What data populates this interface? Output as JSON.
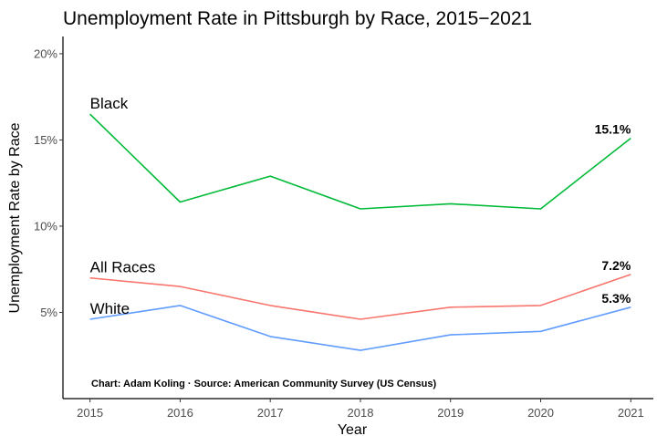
{
  "chart_data": {
    "type": "line",
    "title": "Unemployment Rate in Pittsburgh by Race, 2015−2021",
    "xlabel": "Year",
    "ylabel": "Unemployment Rate by Race",
    "x": [
      2015,
      2016,
      2017,
      2018,
      2019,
      2020,
      2021
    ],
    "x_tick_labels": [
      "2015",
      "2016",
      "2017",
      "2018",
      "2019",
      "2020",
      "2021"
    ],
    "y_ticks": [
      5,
      10,
      15,
      20
    ],
    "y_tick_labels": [
      "5%",
      "10%",
      "15%",
      "20%"
    ],
    "xlim": [
      2014.7,
      2021.25
    ],
    "ylim": [
      0,
      21
    ],
    "grid": false,
    "legend": "none",
    "series": [
      {
        "name": "Black",
        "color": "#00ba38",
        "values": [
          16.5,
          11.4,
          12.9,
          11.0,
          11.3,
          11.0,
          15.1
        ],
        "end_label": "15.1%"
      },
      {
        "name": "All Races",
        "color": "#f8766d",
        "values": [
          7.0,
          6.5,
          5.4,
          4.6,
          5.3,
          5.4,
          7.2
        ],
        "end_label": "7.2%"
      },
      {
        "name": "White",
        "color": "#619cff",
        "values": [
          4.6,
          5.4,
          3.6,
          2.8,
          3.7,
          3.9,
          5.3
        ],
        "end_label": "5.3%"
      }
    ],
    "caption": "Chart: Adam Koling  ·  Source: American Community Survey (US Census)"
  }
}
